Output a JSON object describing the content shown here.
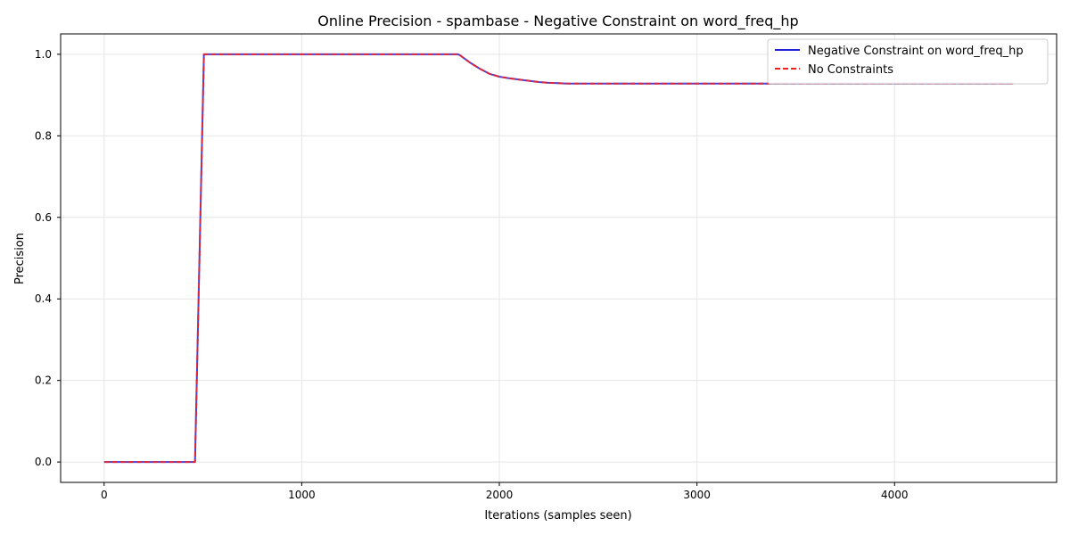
{
  "chart_data": {
    "type": "line",
    "title": "Online Precision - spambase - Negative Constraint on word_freq_hp",
    "xlabel": "Iterations (samples seen)",
    "ylabel": "Precision",
    "xlim": [
      -220,
      4820
    ],
    "ylim": [
      -0.05,
      1.05
    ],
    "xticks": [
      0,
      1000,
      2000,
      3000,
      4000
    ],
    "xtick_labels": [
      "0",
      "1000",
      "2000",
      "3000",
      "4000"
    ],
    "yticks": [
      0.0,
      0.2,
      0.4,
      0.6,
      0.8,
      1.0
    ],
    "ytick_labels": [
      "0.0",
      "0.2",
      "0.4",
      "0.6",
      "0.8",
      "1.0"
    ],
    "grid": true,
    "legend_position": "top-right",
    "series": [
      {
        "name": "Negative Constraint on word_freq_hp",
        "color": "#2222dd",
        "style": "solid",
        "x": [
          0,
          460,
          505,
          600,
          1000,
          1500,
          1790,
          1800,
          1850,
          1900,
          1950,
          2000,
          2050,
          2100,
          2150,
          2200,
          2250,
          2300,
          2350,
          2400,
          3000,
          4000,
          4600
        ],
        "y": [
          0.0,
          0.0,
          1.0,
          1.0,
          1.0,
          1.0,
          1.0,
          0.998,
          0.98,
          0.965,
          0.952,
          0.945,
          0.941,
          0.938,
          0.935,
          0.932,
          0.93,
          0.929,
          0.928,
          0.928,
          0.928,
          0.928,
          0.928
        ]
      },
      {
        "name": "No Constraints",
        "color": "#ee2222",
        "style": "dashed",
        "x": [
          0,
          460,
          505,
          600,
          1000,
          1500,
          1790,
          1800,
          1850,
          1900,
          1950,
          2000,
          2050,
          2100,
          2150,
          2200,
          2250,
          2300,
          2350,
          2400,
          3000,
          4000,
          4600
        ],
        "y": [
          0.0,
          0.0,
          1.0,
          1.0,
          1.0,
          1.0,
          1.0,
          0.998,
          0.98,
          0.965,
          0.952,
          0.945,
          0.941,
          0.938,
          0.935,
          0.932,
          0.93,
          0.929,
          0.928,
          0.928,
          0.928,
          0.928,
          0.928
        ]
      }
    ]
  }
}
